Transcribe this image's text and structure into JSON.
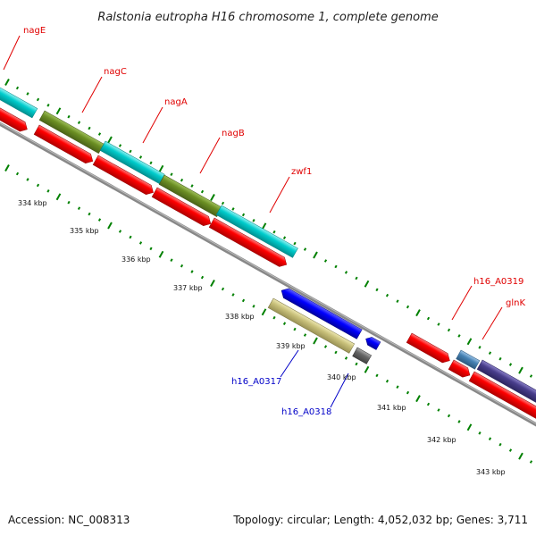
{
  "title": "Ralstonia eutropha H16 chromosome 1, complete genome",
  "footer": {
    "accession": "Accession: NC_008313",
    "topology": "Topology: circular; Length: 4,052,032 bp; Genes: 3,711"
  },
  "gene_labels": {
    "nagE": "nagE",
    "nagC": "nagC",
    "nagA": "nagA",
    "nagB": "nagB",
    "zwf1": "zwf1",
    "h16_A0319": "h16_A0319",
    "glnK": "glnK",
    "h16_A0317": "h16_A0317",
    "h16_A0318": "h16_A0318"
  },
  "kbp_labels": [
    "334 kbp",
    "335 kbp",
    "336 kbp",
    "337 kbp",
    "338 kbp",
    "339 kbp",
    "340 kbp",
    "341 kbp",
    "342 kbp",
    "343 kbp"
  ],
  "colors": {
    "cds_red": "#ff0000",
    "cyan": "#00cccc",
    "olive": "#6b8e23",
    "blue": "#0000ff",
    "khaki": "#c8c07a",
    "gray_feature": "#666666",
    "steelblue": "#4682b4",
    "darkslateblue": "#483d8b",
    "backbone": "#888888",
    "ticks": "#008000"
  }
}
